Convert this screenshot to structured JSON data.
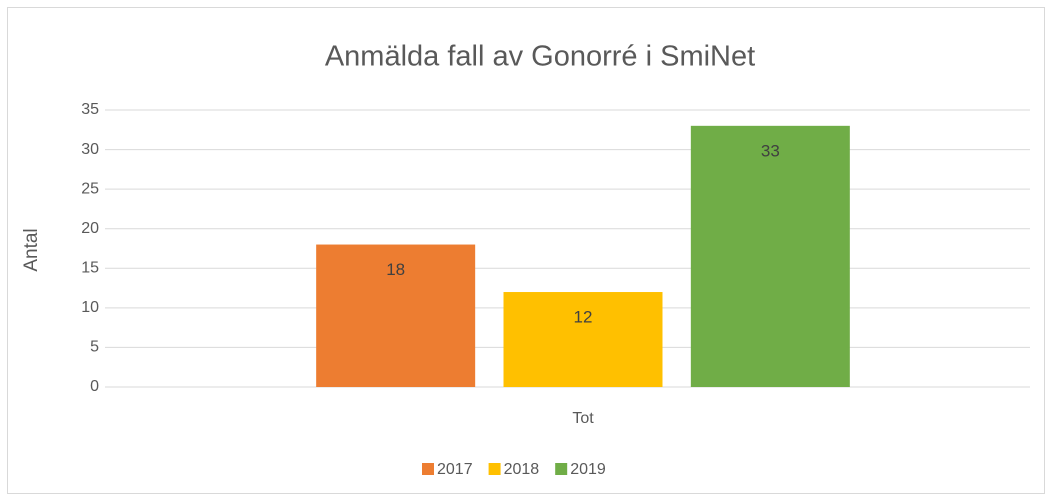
{
  "chart_data": {
    "type": "bar",
    "title": "Anmälda fall av Gonorré i SmiNet",
    "y_label": "Antal",
    "categories": [
      "Tot"
    ],
    "series": [
      {
        "name": "2017",
        "color": "#ed7d31",
        "values": [
          18
        ]
      },
      {
        "name": "2018",
        "color": "#ffc000",
        "values": [
          12
        ]
      },
      {
        "name": "2019",
        "color": "#70ad47",
        "values": [
          33
        ]
      }
    ],
    "ylim": [
      0,
      35
    ],
    "yticks": [
      0,
      5,
      10,
      15,
      20,
      25,
      30,
      35
    ],
    "grid": true,
    "legend": "bottom"
  }
}
